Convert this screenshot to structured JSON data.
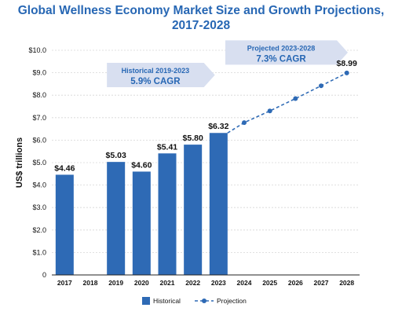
{
  "chart_data": {
    "type": "bar",
    "title_line1": "Global Wellness Economy Market Size and Growth Projections,",
    "title_line2": "2017-2028",
    "ylabel": "US$ trillions",
    "ylim": [
      0,
      10
    ],
    "yticks": [
      "0",
      "$1.0",
      "$2.0",
      "$3.0",
      "$4.0",
      "$5.0",
      "$6.0",
      "$7.0",
      "$8.0",
      "$9.0",
      "$10.0"
    ],
    "categories": [
      "2017",
      "2018",
      "2019",
      "2020",
      "2021",
      "2022",
      "2023",
      "2024",
      "2025",
      "2026",
      "2027",
      "2028"
    ],
    "grid": true,
    "series": [
      {
        "name": "Historical",
        "kind": "bar",
        "color": "#2e6ab5",
        "points": [
          {
            "x": "2017",
            "y": 4.46,
            "label": "$4.46"
          },
          {
            "x": "2019",
            "y": 5.03,
            "label": "$5.03"
          },
          {
            "x": "2020",
            "y": 4.6,
            "label": "$4.60"
          },
          {
            "x": "2021",
            "y": 5.41,
            "label": "$5.41"
          },
          {
            "x": "2022",
            "y": 5.8,
            "label": "$5.80"
          },
          {
            "x": "2023",
            "y": 6.32,
            "label": "$6.32"
          }
        ]
      },
      {
        "name": "Projection",
        "kind": "line-dashed",
        "color": "#2e6ab5",
        "points": [
          {
            "x": "2023",
            "y": 6.32
          },
          {
            "x": "2024",
            "y": 6.78
          },
          {
            "x": "2025",
            "y": 7.3
          },
          {
            "x": "2026",
            "y": 7.85
          },
          {
            "x": "2027",
            "y": 8.42
          },
          {
            "x": "2028",
            "y": 8.99,
            "label": "$8.99"
          }
        ]
      }
    ],
    "annotations": [
      {
        "line1": "Historical 2019-2023",
        "line2": "5.9% CAGR"
      },
      {
        "line1": "Projected 2023-2028",
        "line2": "7.3% CAGR"
      }
    ],
    "legend": {
      "placement": "bottom",
      "items": [
        "Historical",
        "Projection"
      ]
    },
    "colors": {
      "accent": "#2767b4",
      "arrow_fill": "#d8dff0",
      "grid": "#d6d6d6"
    }
  }
}
